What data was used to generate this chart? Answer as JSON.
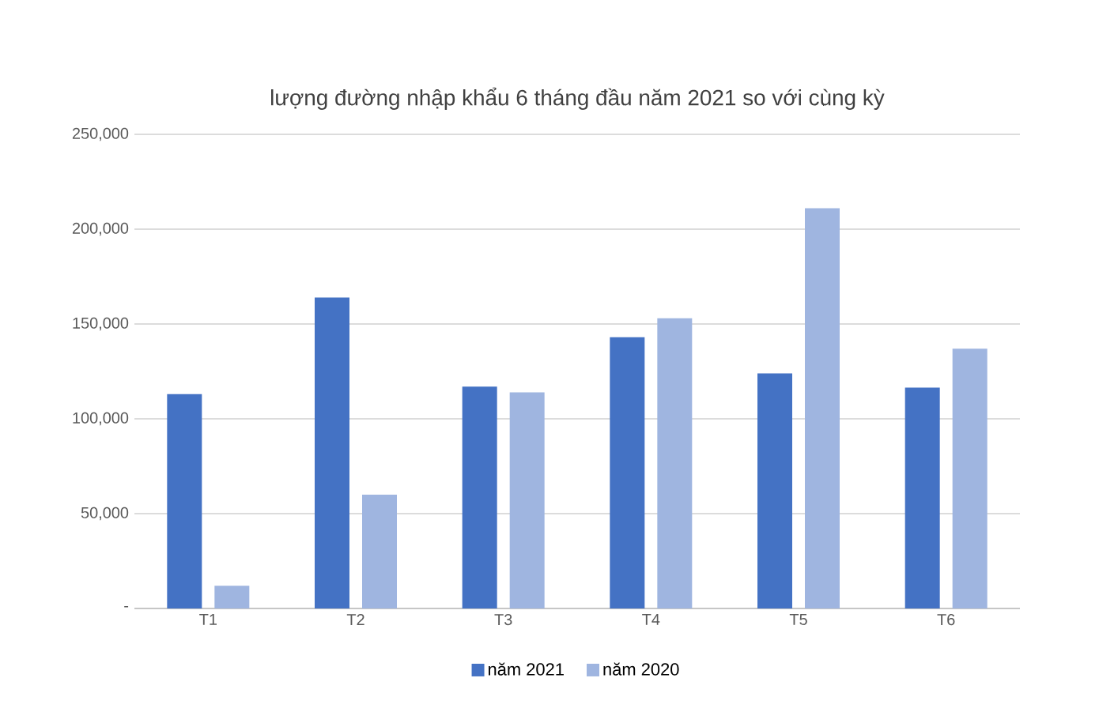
{
  "chart_data": {
    "type": "bar",
    "title": "lượng đường nhập khẩu 6 tháng đầu năm 2021 so với cùng kỳ",
    "categories": [
      "T1",
      "T2",
      "T3",
      "T4",
      "T5",
      "T6"
    ],
    "series": [
      {
        "name": "năm 2021",
        "color": "#4472c4",
        "values": [
          113000,
          164000,
          117000,
          143000,
          124000,
          116500
        ]
      },
      {
        "name": "năm 2020",
        "color": "#9fb5e0",
        "values": [
          12000,
          60000,
          114000,
          153000,
          211000,
          137000
        ]
      }
    ],
    "ylim": [
      0,
      250000
    ],
    "yticks": [
      {
        "value": 0,
        "label": "-"
      },
      {
        "value": 50000,
        "label": "50,000"
      },
      {
        "value": 100000,
        "label": "100,000"
      },
      {
        "value": 150000,
        "label": "150,000"
      },
      {
        "value": 200000,
        "label": "200,000"
      },
      {
        "value": 250000,
        "label": "250,000"
      }
    ],
    "grid": "y",
    "legend": "bottom"
  }
}
